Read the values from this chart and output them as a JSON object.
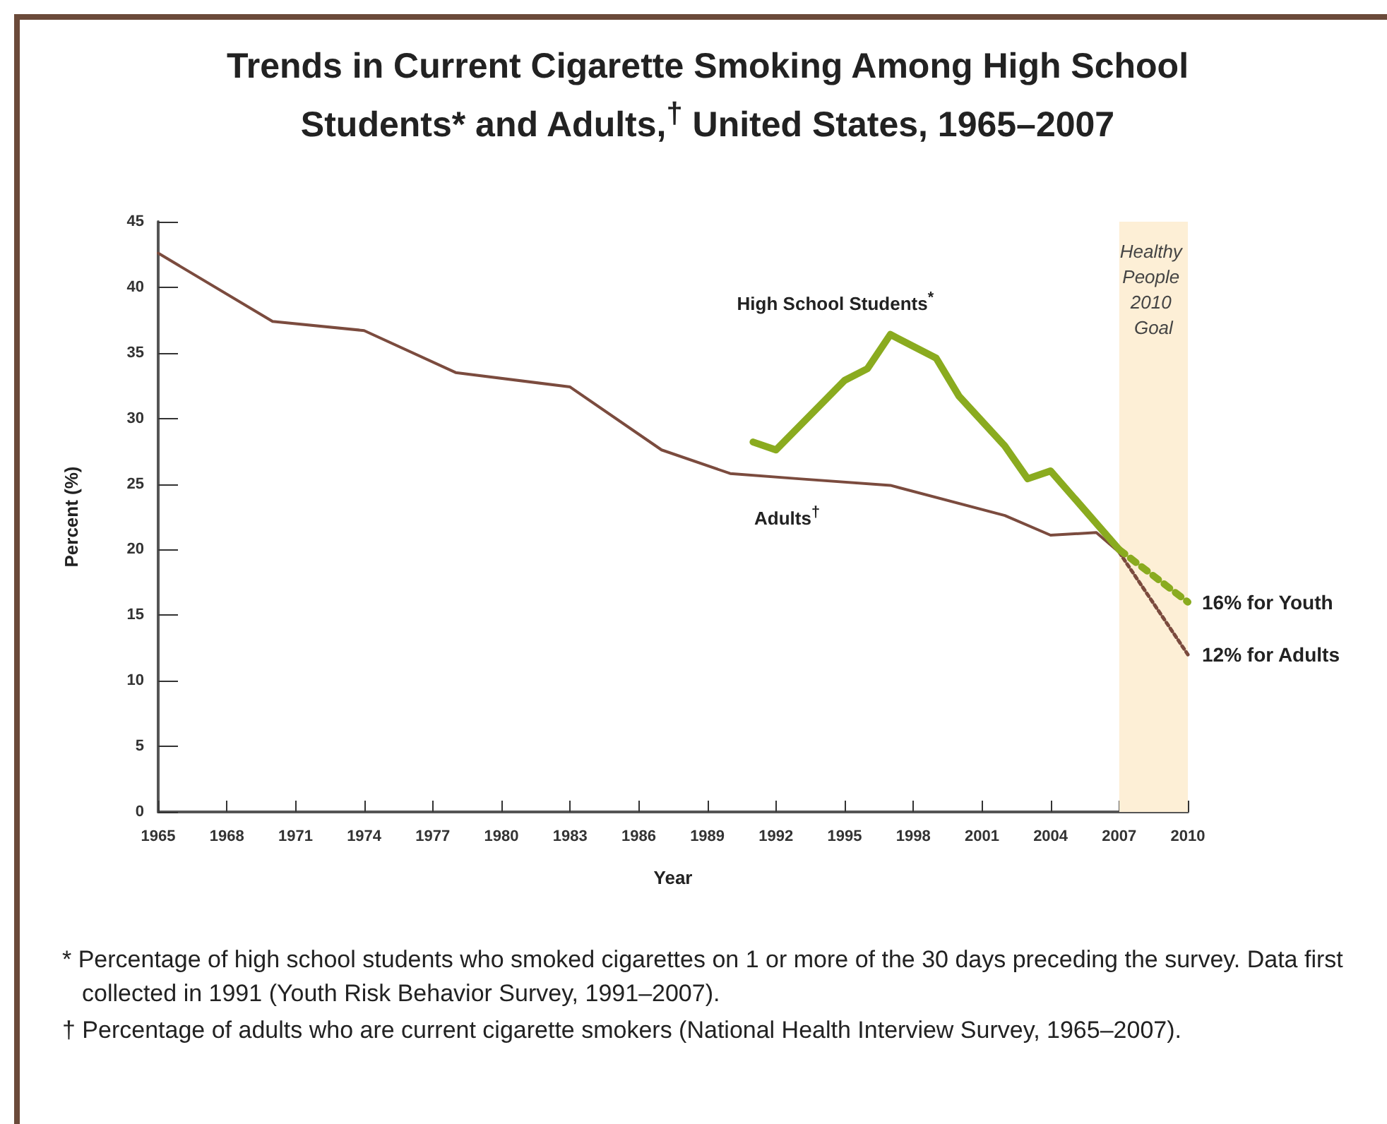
{
  "chart_data": {
    "type": "line",
    "title": "Trends in Current Cigarette Smoking Among High School Students* and Adults,$^{†}$ United States, 1965–2007",
    "xlabel": "Year",
    "ylabel": "Percent (%)",
    "xlim": [
      1965,
      2010
    ],
    "xticks": [
      1965,
      1968,
      1971,
      1974,
      1977,
      1980,
      1983,
      1986,
      1989,
      1992,
      1995,
      1998,
      2001,
      2004,
      2007,
      2010
    ],
    "ylim": [
      0,
      45
    ],
    "yticks": [
      0,
      5,
      10,
      15,
      20,
      25,
      30,
      35,
      40,
      45
    ],
    "grid": false,
    "legend": false,
    "marker": "none",
    "line_style": "solid",
    "series": [
      {
        "name": "Adults$^{†}$",
        "color": "#7b4b3e",
        "x": [
          1965,
          1970,
          1974,
          1978,
          1983,
          1987,
          1990,
          1993,
          1997,
          2002,
          2004,
          2006,
          2007
        ],
        "values": [
          42.6,
          37.4,
          36.7,
          33.5,
          32.4,
          27.6,
          25.8,
          25.4,
          24.9,
          22.6,
          21.1,
          21.3,
          19.8
        ]
      },
      {
        "name": "High School Students$^{*}$",
        "color": "#8aab1f",
        "x": [
          1991,
          1992,
          1995,
          1996,
          1997,
          1999,
          2000,
          2002,
          2003,
          2004,
          2007
        ],
        "values": [
          28.2,
          27.6,
          32.9,
          33.8,
          36.4,
          34.6,
          31.7,
          27.9,
          25.4,
          26.0,
          20.0
        ]
      },
      {
        "color": "#7b4b3e",
        "line_style": "dotted",
        "x": [
          2007,
          2010
        ],
        "values": [
          19.8,
          12
        ]
      },
      {
        "color": "#8aab1f",
        "line_style": "dotted",
        "x": [
          2007,
          2010
        ],
        "values": [
          20.0,
          16
        ]
      }
    ],
    "bands": [
      {
        "axis": "x",
        "from": 2007,
        "to": 2010,
        "label": "Healthy People 2010 Goal",
        "color": "#fdefd6"
      }
    ],
    "annotations": [
      {
        "text": "16% for Youth",
        "x": 2010,
        "y": 16
      },
      {
        "text": "12% for Adults",
        "x": 2010,
        "y": 12
      },
      "* Percentage of high school students who smoked cigarettes on 1 or more of the 30 days preceding the survey. Data first collected in 1991 (Youth Risk Behavior Survey, 1991–2007).",
      "† Percentage of adults who are current cigarette smokers (National Health Interview Survey, 1965–2007)."
    ]
  }
}
